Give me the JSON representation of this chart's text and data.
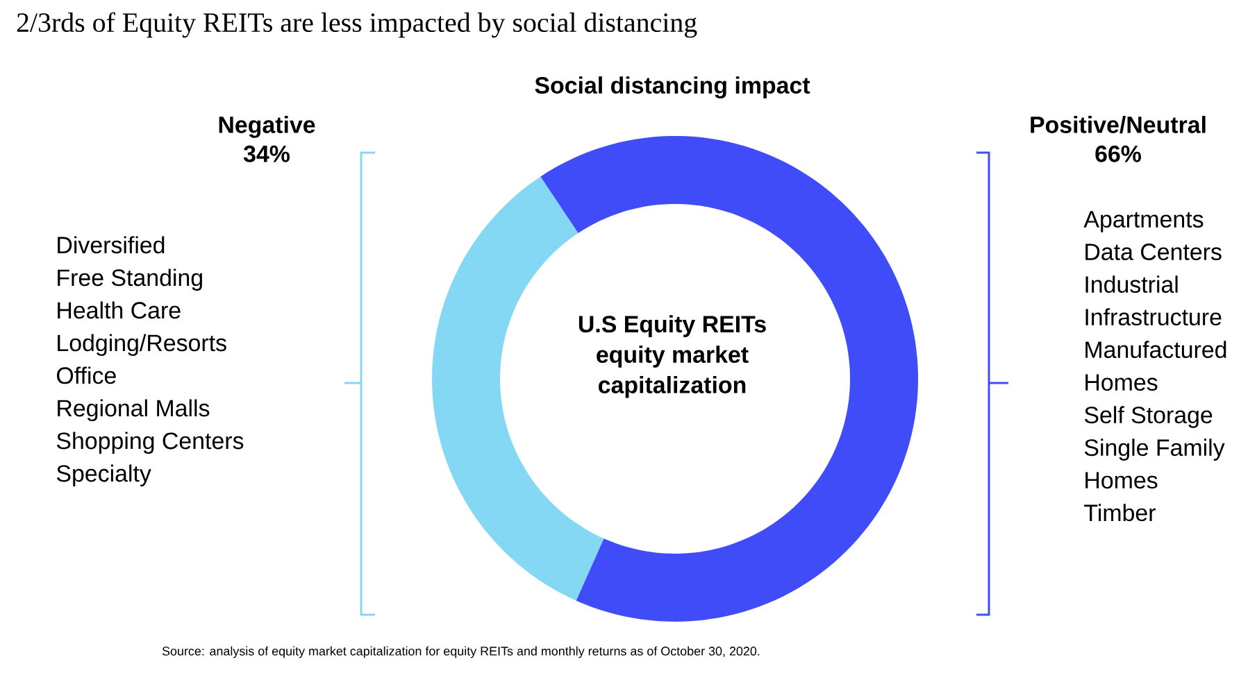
{
  "chart_data": {
    "type": "donut",
    "title": "2/3rds of Equity REITs are less impacted by social distancing",
    "subtitle": "Social distancing impact",
    "categories": [
      "Negative",
      "Positive/Neutral"
    ],
    "values": [
      34,
      66
    ],
    "colors": [
      "#84d8f4",
      "#3f4cf8"
    ],
    "value_labels": [
      "34%",
      "66%"
    ],
    "annotations": [
      "U.S Equity REITs equity market capitalization",
      "Diversified",
      "Free Standing",
      "Health Care",
      "Lodging/Resorts",
      "Office",
      "Regional Malls",
      "Shopping Centers",
      "Specialty",
      "Apartments",
      "Data Centers",
      "Industrial",
      "Infrastructure",
      "Manufactured Homes",
      "Self Storage",
      "Single Family Homes",
      "Timber",
      "Source: analysis of equity market capitalization for equity REITs and monthly returns as of October 30, 2020."
    ]
  }
}
